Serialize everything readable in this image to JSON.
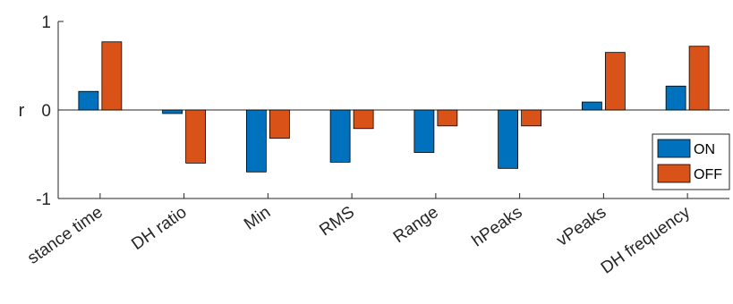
{
  "chart_data": {
    "type": "bar",
    "title": "",
    "xlabel": "",
    "ylabel": "r",
    "ylim": [
      -1,
      1
    ],
    "yticks": [
      -1,
      0,
      1
    ],
    "grid": false,
    "legend_position": "bottom-right",
    "categories": [
      "stance time",
      "DH ratio",
      "Min",
      "RMS",
      "Range",
      "hPeaks",
      "vPeaks",
      "DH frequency"
    ],
    "series": [
      {
        "name": "ON",
        "color": "#0072BD",
        "values": [
          0.21,
          -0.04,
          -0.7,
          -0.59,
          -0.48,
          -0.66,
          0.09,
          0.27
        ]
      },
      {
        "name": "OFF",
        "color": "#D95319",
        "values": [
          0.77,
          -0.6,
          -0.32,
          -0.21,
          -0.18,
          -0.18,
          0.65,
          0.72
        ]
      }
    ]
  }
}
